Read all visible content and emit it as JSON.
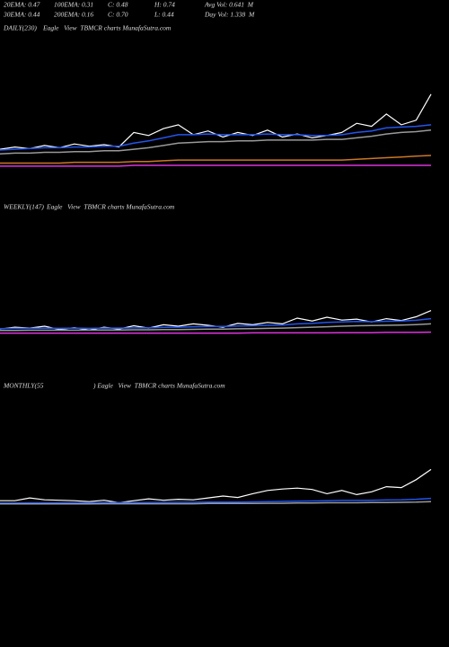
{
  "header": {
    "rows": [
      [
        "20EMA: 0.47",
        "100EMA: 0.31",
        "C: 0.48",
        "H: 0.74",
        "Avg Vol: 0.641  M"
      ],
      [
        "30EMA: 0.44",
        "200EMA: 0.16",
        "C: 0.70",
        "L: 0.44",
        "Day Vol: 1.338  M"
      ]
    ]
  },
  "chart_data": [
    {
      "type": "line",
      "title": "DAILY(230)",
      "subtitle": "Eagle   View  TBMCR charts MunafaSutra.com",
      "ylim": [
        0,
        1.76
      ],
      "series": [
        {
          "color": "#ffffff",
          "values": [
            0.28,
            0.31,
            0.29,
            0.33,
            0.3,
            0.35,
            0.32,
            0.34,
            0.31,
            0.5,
            0.46,
            0.55,
            0.6,
            0.47,
            0.52,
            0.44,
            0.5,
            0.46,
            0.53,
            0.44,
            0.48,
            0.43,
            0.46,
            0.5,
            0.62,
            0.58,
            0.74,
            0.6,
            0.66,
            1.0
          ]
        },
        {
          "color": "#2255ee",
          "values": [
            0.27,
            0.28,
            0.29,
            0.3,
            0.3,
            0.31,
            0.31,
            0.32,
            0.32,
            0.36,
            0.39,
            0.43,
            0.47,
            0.47,
            0.48,
            0.47,
            0.47,
            0.47,
            0.48,
            0.47,
            0.47,
            0.46,
            0.46,
            0.47,
            0.5,
            0.52,
            0.56,
            0.57,
            0.58,
            0.6
          ]
        },
        {
          "color": "#999999",
          "values": [
            0.22,
            0.23,
            0.23,
            0.24,
            0.24,
            0.25,
            0.25,
            0.26,
            0.26,
            0.28,
            0.3,
            0.33,
            0.36,
            0.37,
            0.38,
            0.38,
            0.39,
            0.39,
            0.4,
            0.4,
            0.4,
            0.4,
            0.41,
            0.41,
            0.43,
            0.45,
            0.48,
            0.5,
            0.51,
            0.53
          ]
        },
        {
          "color": "#cc7722",
          "values": [
            0.1,
            0.1,
            0.1,
            0.1,
            0.1,
            0.11,
            0.11,
            0.11,
            0.11,
            0.12,
            0.12,
            0.13,
            0.14,
            0.14,
            0.14,
            0.14,
            0.14,
            0.14,
            0.14,
            0.14,
            0.14,
            0.14,
            0.14,
            0.14,
            0.15,
            0.16,
            0.17,
            0.18,
            0.19,
            0.2
          ]
        },
        {
          "color": "#dd33dd",
          "values": [
            0.06,
            0.06,
            0.06,
            0.06,
            0.06,
            0.06,
            0.06,
            0.06,
            0.06,
            0.07,
            0.07,
            0.07,
            0.07,
            0.07,
            0.07,
            0.07,
            0.07,
            0.07,
            0.07,
            0.07,
            0.07,
            0.07,
            0.07,
            0.07,
            0.07,
            0.07,
            0.07,
            0.07,
            0.07,
            0.07
          ]
        }
      ]
    },
    {
      "type": "line",
      "title": "WEEKLY(147)",
      "subtitle": "Eagle   View  TBMCR charts MunafaSutra.com",
      "ylim": [
        0,
        5
      ],
      "series": [
        {
          "color": "#ffffff",
          "values": [
            0.22,
            0.3,
            0.26,
            0.34,
            0.2,
            0.28,
            0.18,
            0.3,
            0.22,
            0.36,
            0.26,
            0.4,
            0.34,
            0.44,
            0.38,
            0.3,
            0.46,
            0.4,
            0.5,
            0.44,
            0.68,
            0.56,
            0.72,
            0.6,
            0.64,
            0.52,
            0.66,
            0.58,
            0.74,
            1.0
          ]
        },
        {
          "color": "#2255ee",
          "values": [
            0.24,
            0.25,
            0.25,
            0.26,
            0.25,
            0.26,
            0.25,
            0.26,
            0.26,
            0.27,
            0.27,
            0.29,
            0.3,
            0.32,
            0.33,
            0.33,
            0.35,
            0.36,
            0.38,
            0.39,
            0.44,
            0.46,
            0.5,
            0.52,
            0.54,
            0.53,
            0.55,
            0.56,
            0.59,
            0.66
          ]
        },
        {
          "color": "#999999",
          "values": [
            0.16,
            0.16,
            0.17,
            0.17,
            0.17,
            0.17,
            0.18,
            0.18,
            0.18,
            0.19,
            0.19,
            0.2,
            0.2,
            0.21,
            0.22,
            0.22,
            0.23,
            0.24,
            0.25,
            0.26,
            0.28,
            0.3,
            0.32,
            0.34,
            0.36,
            0.37,
            0.38,
            0.39,
            0.41,
            0.44
          ]
        },
        {
          "color": "#dd33dd",
          "values": [
            0.05,
            0.05,
            0.05,
            0.05,
            0.05,
            0.05,
            0.05,
            0.05,
            0.05,
            0.05,
            0.05,
            0.05,
            0.05,
            0.05,
            0.05,
            0.05,
            0.05,
            0.06,
            0.06,
            0.06,
            0.06,
            0.06,
            0.06,
            0.07,
            0.07,
            0.07,
            0.08,
            0.08,
            0.08,
            0.09
          ]
        }
      ]
    },
    {
      "type": "line",
      "title": "MONTHLY(55",
      "subtitle": ") Eagle   View  TBMCR charts MunafaSutra.com",
      "ylim": [
        0,
        5
      ],
      "series": [
        {
          "color": "#ffffff",
          "values": [
            0.3,
            0.3,
            0.42,
            0.34,
            0.32,
            0.3,
            0.26,
            0.32,
            0.22,
            0.3,
            0.38,
            0.32,
            0.36,
            0.34,
            0.42,
            0.5,
            0.44,
            0.6,
            0.74,
            0.8,
            0.84,
            0.78,
            0.6,
            0.74,
            0.56,
            0.68,
            0.9,
            0.86,
            1.2,
            1.64
          ]
        },
        {
          "color": "#2255ee",
          "values": [
            0.2,
            0.2,
            0.21,
            0.21,
            0.21,
            0.21,
            0.21,
            0.22,
            0.22,
            0.22,
            0.22,
            0.23,
            0.23,
            0.23,
            0.24,
            0.24,
            0.24,
            0.25,
            0.26,
            0.27,
            0.28,
            0.29,
            0.3,
            0.31,
            0.31,
            0.32,
            0.33,
            0.34,
            0.36,
            0.4
          ]
        },
        {
          "color": "#999999",
          "values": [
            0.16,
            0.16,
            0.16,
            0.16,
            0.16,
            0.16,
            0.16,
            0.17,
            0.17,
            0.17,
            0.17,
            0.17,
            0.17,
            0.17,
            0.18,
            0.18,
            0.18,
            0.18,
            0.19,
            0.19,
            0.2,
            0.2,
            0.21,
            0.21,
            0.21,
            0.22,
            0.22,
            0.23,
            0.24,
            0.26
          ]
        }
      ]
    }
  ]
}
